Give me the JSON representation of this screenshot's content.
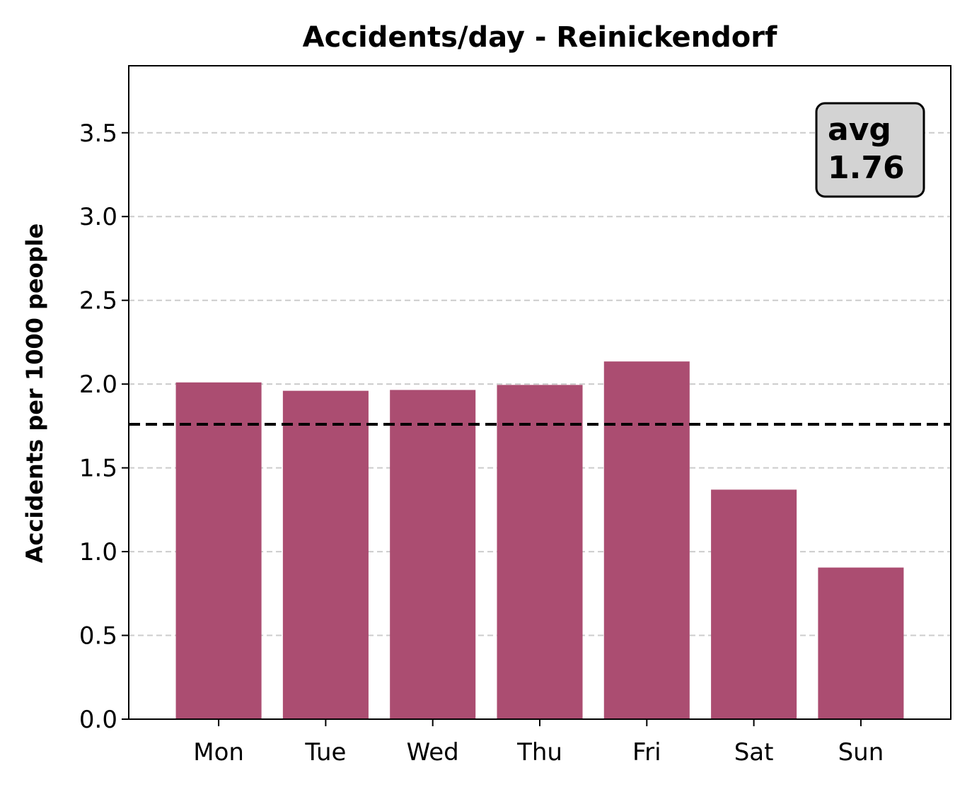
{
  "chart_data": {
    "type": "bar",
    "title": "Accidents/day - Reinickendorf",
    "xlabel": "",
    "ylabel": "Accidents per 1000 people",
    "categories": [
      "Mon",
      "Tue",
      "Wed",
      "Thu",
      "Fri",
      "Sat",
      "Sun"
    ],
    "values": [
      2.01,
      1.96,
      1.965,
      1.995,
      2.135,
      1.37,
      0.905
    ],
    "ylim": [
      0,
      3.9
    ],
    "yticks": [
      0.0,
      0.5,
      1.0,
      1.5,
      2.0,
      2.5,
      3.0,
      3.5
    ],
    "ytick_labels": [
      "0.0",
      "0.5",
      "1.0",
      "1.5",
      "2.0",
      "2.5",
      "3.0",
      "3.5"
    ],
    "grid": "y-dashed",
    "bar_color": "#ab4d71",
    "average": {
      "value": 1.76,
      "label_prefix": "avg",
      "label_value": "1.76",
      "line_style": "dashed",
      "line_color": "#000000",
      "box_color": "#d3d3d3"
    }
  }
}
